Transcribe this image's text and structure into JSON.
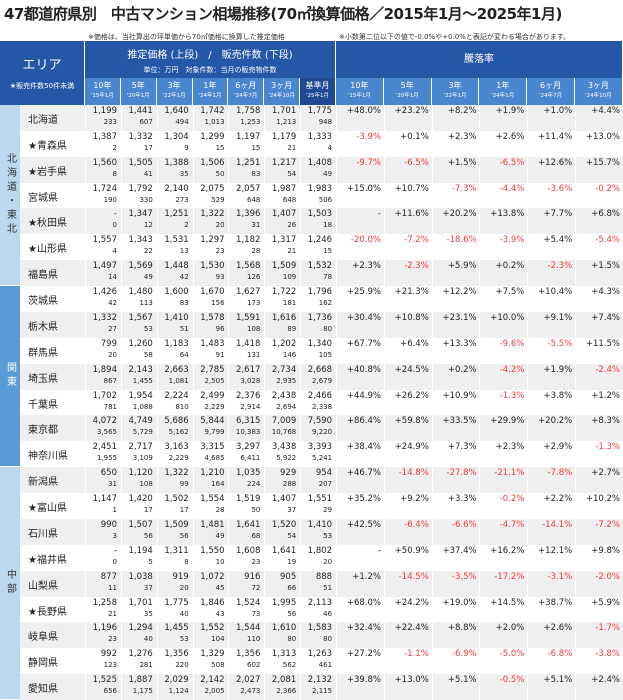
{
  "title": "47都道府県別　中古マンション相場推移(70㎡換算価格／2015年1月～2025年1月)",
  "notes": [
    "※価格は、当社算出の坪単価から70㎡価格に換算した推定価格",
    "※小数第二位以下の値で-0.0%や+0.0%と表記が変わる場合があります。"
  ],
  "header": {
    "area": "エリア",
    "area_note": "★販売件数50件未満",
    "price_title": "推定価格 (上段)　/　販売件数 (下段)",
    "price_unit": "単位：万円　対象件数：当月の販売物件数",
    "rate_title": "騰落率"
  },
  "price_cols": [
    [
      "10年",
      "'15年1月"
    ],
    [
      "5年",
      "'20年1月"
    ],
    [
      "3年",
      "'22年1月"
    ],
    [
      "1年",
      "'24年1月"
    ],
    [
      "6ヶ月",
      "'24年7月"
    ],
    [
      "3ヶ月",
      "'24年10月"
    ],
    [
      "基準月",
      "'25年1月"
    ]
  ],
  "rate_cols": [
    [
      "10年",
      "'15年1月"
    ],
    [
      "5年",
      "'20年1月"
    ],
    [
      "3年",
      "'22年1月"
    ],
    [
      "1年",
      "'24年1月"
    ],
    [
      "6ヶ月",
      "'24年7月"
    ],
    [
      "3ヶ月",
      "'24年10月"
    ]
  ],
  "regions": [
    {
      "name": "北海道・東北",
      "rows": 7,
      "color": "#bdd7ef",
      "text": "#333"
    },
    {
      "name": "関東",
      "rows": 7,
      "color": "#5b9bd5",
      "text": "#fff"
    },
    {
      "name": "中部",
      "rows": 9,
      "color": "#bdd7ef",
      "text": "#333"
    }
  ],
  "colors": {
    "negative": "#f03b3b",
    "header": "#2457a5"
  },
  "rows": [
    {
      "name": "北海道",
      "p": [
        "1,199",
        "1,441",
        "1,640",
        "1,742",
        "1,758",
        "1,701",
        "1,775"
      ],
      "n": [
        "233",
        "607",
        "494",
        "1,013",
        "1,253",
        "1,213",
        "948"
      ],
      "r": [
        "+48.0%",
        "+23.2%",
        "+8.2%",
        "+1.9%",
        "+1.0%",
        "+4.4%"
      ]
    },
    {
      "name": "★青森県",
      "p": [
        "1,387",
        "1,332",
        "1,304",
        "1,299",
        "1,197",
        "1,179",
        "1,333"
      ],
      "n": [
        "2",
        "17",
        "9",
        "15",
        "15",
        "21",
        "4"
      ],
      "r": [
        "-3.9%",
        "+0.1%",
        "+2.3%",
        "+2.6%",
        "+11.4%",
        "+13.0%"
      ]
    },
    {
      "name": "★岩手県",
      "p": [
        "1,560",
        "1,505",
        "1,388",
        "1,506",
        "1,251",
        "1,217",
        "1,408"
      ],
      "n": [
        "8",
        "41",
        "35",
        "50",
        "83",
        "54",
        "49"
      ],
      "r": [
        "-9.7%",
        "-6.5%",
        "+1.5%",
        "-6.5%",
        "+12.6%",
        "+15.7%"
      ]
    },
    {
      "name": "宮城県",
      "p": [
        "1,724",
        "1,792",
        "2,140",
        "2,075",
        "2,057",
        "1,987",
        "1,983"
      ],
      "n": [
        "190",
        "330",
        "273",
        "529",
        "648",
        "648",
        "506"
      ],
      "r": [
        "+15.0%",
        "+10.7%",
        "-7.3%",
        "-4.4%",
        "-3.6%",
        "-0.2%"
      ]
    },
    {
      "name": "★秋田県",
      "p": [
        "-",
        "1,347",
        "1,251",
        "1,322",
        "1,396",
        "1,407",
        "1,503"
      ],
      "n": [
        "0",
        "12",
        "2",
        "20",
        "31",
        "26",
        "18"
      ],
      "r": [
        "-",
        "+11.6%",
        "+20.2%",
        "+13.8%",
        "+7.7%",
        "+6.8%"
      ]
    },
    {
      "name": "★山形県",
      "p": [
        "1,557",
        "1,343",
        "1,531",
        "1,297",
        "1,182",
        "1,317",
        "1,246"
      ],
      "n": [
        "4",
        "22",
        "13",
        "23",
        "28",
        "21",
        "15"
      ],
      "r": [
        "-20.0%",
        "-7.2%",
        "-18.6%",
        "-3.9%",
        "+5.4%",
        "-5.4%"
      ]
    },
    {
      "name": "福島県",
      "p": [
        "1,497",
        "1,569",
        "1,448",
        "1,530",
        "1,568",
        "1,509",
        "1,532"
      ],
      "n": [
        "14",
        "49",
        "42",
        "93",
        "126",
        "109",
        "78"
      ],
      "r": [
        "+2.3%",
        "-2.3%",
        "+5.9%",
        "+0.2%",
        "-2.3%",
        "+1.5%"
      ]
    },
    {
      "name": "茨城県",
      "p": [
        "1,426",
        "1,480",
        "1,600",
        "1,670",
        "1,627",
        "1,722",
        "1,796"
      ],
      "n": [
        "42",
        "113",
        "83",
        "156",
        "173",
        "181",
        "162"
      ],
      "r": [
        "+25.9%",
        "+21.3%",
        "+12.2%",
        "+7.5%",
        "+10.4%",
        "+4.3%"
      ]
    },
    {
      "name": "栃木県",
      "p": [
        "1,332",
        "1,567",
        "1,410",
        "1,578",
        "1,591",
        "1,616",
        "1,736"
      ],
      "n": [
        "27",
        "53",
        "51",
        "96",
        "108",
        "89",
        "80"
      ],
      "r": [
        "+30.4%",
        "+10.8%",
        "+23.1%",
        "+10.0%",
        "+9.1%",
        "+7.4%"
      ]
    },
    {
      "name": "群馬県",
      "p": [
        "799",
        "1,260",
        "1,183",
        "1,483",
        "1,418",
        "1,202",
        "1,340"
      ],
      "n": [
        "20",
        "58",
        "64",
        "91",
        "131",
        "146",
        "105"
      ],
      "r": [
        "+67.7%",
        "+6.4%",
        "+13.3%",
        "-9.6%",
        "-5.5%",
        "+11.5%"
      ]
    },
    {
      "name": "埼玉県",
      "p": [
        "1,894",
        "2,143",
        "2,663",
        "2,785",
        "2,617",
        "2,734",
        "2,668"
      ],
      "n": [
        "867",
        "1,455",
        "1,081",
        "2,505",
        "3,028",
        "2,935",
        "2,679"
      ],
      "r": [
        "+40.8%",
        "+24.5%",
        "+0.2%",
        "-4.2%",
        "+1.9%",
        "-2.4%"
      ]
    },
    {
      "name": "千葉県",
      "p": [
        "1,702",
        "1,954",
        "2,224",
        "2,499",
        "2,376",
        "2,438",
        "2,466"
      ],
      "n": [
        "781",
        "1,088",
        "810",
        "2,229",
        "2,914",
        "2,694",
        "2,338"
      ],
      "r": [
        "+44.9%",
        "+26.2%",
        "+10.9%",
        "-1.3%",
        "+3.8%",
        "+1.2%"
      ]
    },
    {
      "name": "東京都",
      "p": [
        "4,072",
        "4,749",
        "5,686",
        "5,844",
        "6,315",
        "7,009",
        "7,590"
      ],
      "n": [
        "3,565",
        "5,729",
        "5,162",
        "9,799",
        "10,383",
        "10,768",
        "9,220"
      ],
      "r": [
        "+86.4%",
        "+59.8%",
        "+33.5%",
        "+29.9%",
        "+20.2%",
        "+8.3%"
      ]
    },
    {
      "name": "神奈川県",
      "p": [
        "2,451",
        "2,717",
        "3,163",
        "3,315",
        "3,297",
        "3,438",
        "3,393"
      ],
      "n": [
        "1,955",
        "3,109",
        "2,229",
        "4,685",
        "6,411",
        "5,922",
        "5,241"
      ],
      "r": [
        "+38.4%",
        "+24.9%",
        "+7.3%",
        "+2.3%",
        "+2.9%",
        "-1.3%"
      ]
    },
    {
      "name": "新潟県",
      "p": [
        "650",
        "1,120",
        "1,322",
        "1,210",
        "1,035",
        "929",
        "954"
      ],
      "n": [
        "31",
        "108",
        "99",
        "164",
        "224",
        "288",
        "207"
      ],
      "r": [
        "+46.7%",
        "-14.8%",
        "-27.8%",
        "-21.1%",
        "-7.8%",
        "+2.7%"
      ]
    },
    {
      "name": "★富山県",
      "p": [
        "1,147",
        "1,420",
        "1,502",
        "1,554",
        "1,519",
        "1,407",
        "1,551"
      ],
      "n": [
        "1",
        "17",
        "17",
        "28",
        "50",
        "37",
        "29"
      ],
      "r": [
        "+35.2%",
        "+9.2%",
        "+3.3%",
        "-0.2%",
        "+2.2%",
        "+10.2%"
      ]
    },
    {
      "name": "石川県",
      "p": [
        "990",
        "1,507",
        "1,509",
        "1,481",
        "1,641",
        "1,520",
        "1,410"
      ],
      "n": [
        "3",
        "56",
        "56",
        "49",
        "68",
        "54",
        "53"
      ],
      "r": [
        "+42.5%",
        "-6.4%",
        "-6.6%",
        "-4.7%",
        "-14.1%",
        "-7.2%"
      ]
    },
    {
      "name": "★福井県",
      "p": [
        "-",
        "1,194",
        "1,311",
        "1,550",
        "1,608",
        "1,641",
        "1,802"
      ],
      "n": [
        "0",
        "5",
        "8",
        "10",
        "23",
        "19",
        "20"
      ],
      "r": [
        "-",
        "+50.9%",
        "+37.4%",
        "+16.2%",
        "+12.1%",
        "+9.8%"
      ]
    },
    {
      "name": "山梨県",
      "p": [
        "877",
        "1,038",
        "919",
        "1,072",
        "916",
        "905",
        "888"
      ],
      "n": [
        "11",
        "37",
        "20",
        "45",
        "72",
        "66",
        "51"
      ],
      "r": [
        "+1.2%",
        "-14.5%",
        "-3.5%",
        "-17.2%",
        "-3.1%",
        "-2.0%"
      ]
    },
    {
      "name": "★長野県",
      "p": [
        "1,258",
        "1,701",
        "1,775",
        "1,846",
        "1,524",
        "1,995",
        "2,113"
      ],
      "n": [
        "21",
        "35",
        "40",
        "43",
        "73",
        "56",
        "46"
      ],
      "r": [
        "+68.0%",
        "+24.2%",
        "+19.0%",
        "+14.5%",
        "+38.7%",
        "+5.9%"
      ]
    },
    {
      "name": "岐阜県",
      "p": [
        "1,196",
        "1,294",
        "1,455",
        "1,552",
        "1,544",
        "1,610",
        "1,583"
      ],
      "n": [
        "23",
        "40",
        "53",
        "104",
        "110",
        "80",
        "80"
      ],
      "r": [
        "+32.4%",
        "+22.4%",
        "+8.8%",
        "+2.0%",
        "+2.6%",
        "-1.7%"
      ]
    },
    {
      "name": "静岡県",
      "p": [
        "992",
        "1,276",
        "1,356",
        "1,329",
        "1,356",
        "1,313",
        "1,263"
      ],
      "n": [
        "123",
        "281",
        "220",
        "508",
        "602",
        "562",
        "461"
      ],
      "r": [
        "+27.2%",
        "-1.1%",
        "-6.9%",
        "-5.0%",
        "-6.8%",
        "-3.8%"
      ]
    },
    {
      "name": "愛知県",
      "p": [
        "1,525",
        "1,887",
        "2,029",
        "2,142",
        "2,027",
        "2,081",
        "2,132"
      ],
      "n": [
        "656",
        "1,175",
        "1,124",
        "2,005",
        "2,473",
        "2,366",
        "2,115"
      ],
      "r": [
        "+39.8%",
        "+13.0%",
        "+5.1%",
        "-0.5%",
        "+5.1%",
        "+2.4%"
      ]
    }
  ]
}
